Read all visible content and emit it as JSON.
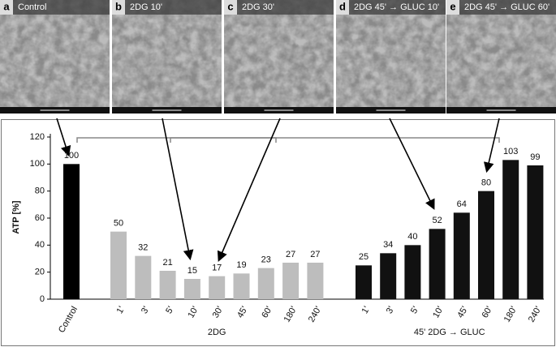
{
  "panels": [
    {
      "letter": "a",
      "title": "Control"
    },
    {
      "letter": "b",
      "title": "2DG 10'"
    },
    {
      "letter": "c",
      "title": "2DG 30'"
    },
    {
      "letter": "d",
      "title": "2DG 45' → GLUC 10'"
    },
    {
      "letter": "e",
      "title": "2DG 45' → GLUC 60'"
    }
  ],
  "chart_data": {
    "type": "bar",
    "y_label": "ATP [%]",
    "ylim": [
      0,
      120
    ],
    "yticks": [
      0,
      20,
      40,
      60,
      80,
      100,
      120
    ],
    "groups": [
      {
        "categories": [
          "Control"
        ],
        "values": [
          100
        ],
        "color": "#000000"
      },
      {
        "label": "2DG",
        "categories": [
          "1'",
          "3'",
          "5'",
          "10'",
          "30'",
          "45'",
          "60'",
          "180'",
          "240'"
        ],
        "values": [
          50,
          32,
          21,
          15,
          17,
          19,
          23,
          27,
          27
        ],
        "color": "#bdbdbd"
      },
      {
        "label": "45' 2DG → GLUC",
        "categories": [
          "1'",
          "3'",
          "5'",
          "10'",
          "45'",
          "60'",
          "180'",
          "240'"
        ],
        "values": [
          25,
          34,
          40,
          52,
          64,
          80,
          103,
          99
        ],
        "color": "#111111"
      }
    ]
  }
}
